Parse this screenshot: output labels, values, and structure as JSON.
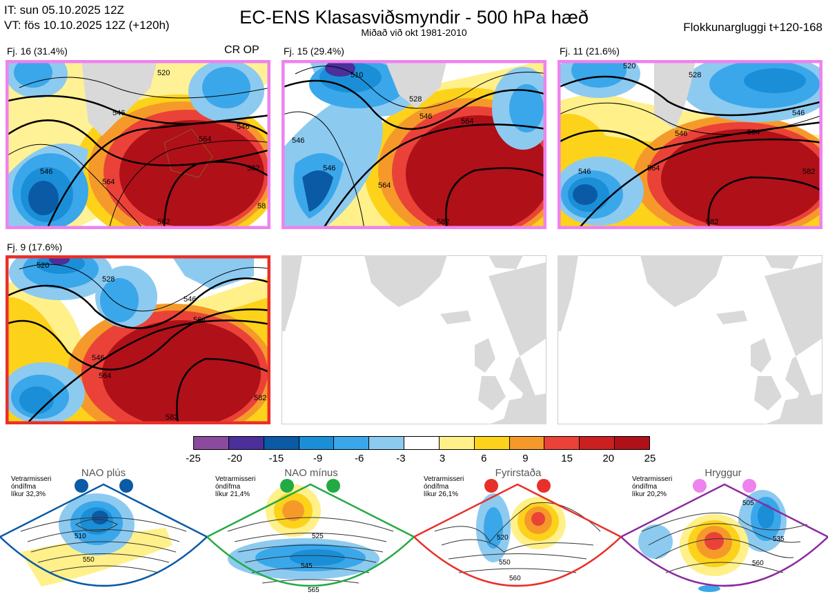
{
  "header": {
    "init_time": "IT: sun 05.10.2025 12Z",
    "valid_time": "VT: fös 10.10.2025 12Z  (+120h)",
    "title": "EC-ENS Klasasviðsmyndir - 500 hPa hæð",
    "subtitle": "Miðað við okt 1981-2010",
    "window": "Flokkunargluggi t+120-168"
  },
  "panels": [
    {
      "label": "Fj. 16 (31.4%)",
      "tag": "CR OP",
      "frame_color": "#ee82ee",
      "contour_labels": [
        "520",
        "546",
        "564",
        "546",
        "582",
        "546",
        "564",
        "58",
        "582"
      ]
    },
    {
      "label": "Fj. 15 (29.4%)",
      "frame_color": "#ee82ee",
      "contour_labels": [
        "510",
        "528",
        "546",
        "564",
        "564",
        "546",
        "582",
        "546"
      ]
    },
    {
      "label": "Fj. 11 (21.6%)",
      "frame_color": "#ee82ee",
      "contour_labels": [
        "520",
        "528",
        "546",
        "564",
        "546",
        "564",
        "582",
        "546",
        "582"
      ]
    },
    {
      "label": "Fj. 9 (17.6%)",
      "frame_color": "#e8302a",
      "contour_labels": [
        "520",
        "528",
        "546",
        "564",
        "546",
        "564",
        "582",
        "582"
      ]
    }
  ],
  "colorbar": {
    "colors": [
      "#8b4a9e",
      "#4b2f9b",
      "#0b5aa5",
      "#1a8fd8",
      "#3aa7ea",
      "#8dcaf0",
      "#ffffff",
      "#fff08a",
      "#fdd21a",
      "#f59a2a",
      "#ea4238",
      "#cc2020",
      "#b01018"
    ],
    "tick_labels": [
      "-25",
      "-20",
      "-15",
      "-9",
      "-6",
      "-3",
      "3",
      "6",
      "9",
      "15",
      "20",
      "25"
    ]
  },
  "regimes": [
    {
      "name": "NAO plús",
      "note_line1": "Vetrarmisseri",
      "note_line2": "óndífma",
      "note_line3": "líkur 32,3%",
      "dot_color": "#0b5aa5",
      "frame_color": "#0b5aa5",
      "contour_labels": [
        "510",
        "550"
      ]
    },
    {
      "name": "NAO mínus",
      "note_line1": "Vetrarmisseri",
      "note_line2": "óndífma",
      "note_line3": "líkur 21,4%",
      "dot_color": "#22aa44",
      "frame_color": "#22aa44",
      "contour_labels": [
        "525",
        "545",
        "565"
      ]
    },
    {
      "name": "Fyrirstaða",
      "note_line1": "Vetrarmisseri",
      "note_line2": "óndífma",
      "note_line3": "líkur 26,1%",
      "dot_color": "#e8302a",
      "frame_color": "#e8302a",
      "contour_labels": [
        "520",
        "550",
        "560"
      ]
    },
    {
      "name": "Hryggur",
      "note_line1": "Vetrarmisseri",
      "note_line2": "óndífma",
      "note_line3": "líkur 20,2%",
      "dot_color": "#ee82ee",
      "frame_color": "#8b2a9e",
      "contour_labels": [
        "505",
        "535",
        "560"
      ]
    }
  ]
}
